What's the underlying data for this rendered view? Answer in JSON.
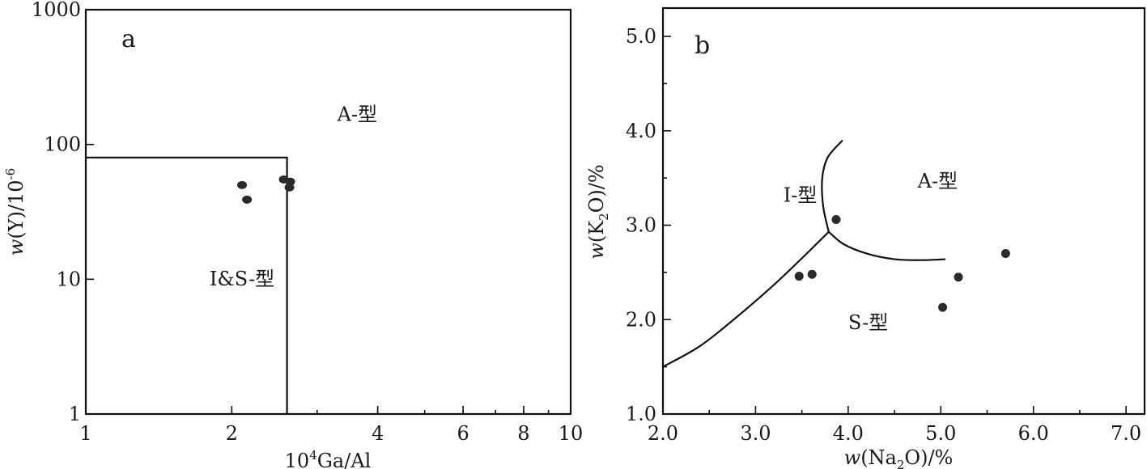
{
  "chart_data": [
    {
      "type": "scatter",
      "panel_label": "a",
      "x_scale": "log",
      "y_scale": "log",
      "xlim": [
        1,
        10
      ],
      "ylim": [
        1,
        1000
      ],
      "xticks": [
        {
          "value": 1,
          "label": "1"
        },
        {
          "value": 2,
          "label": "2"
        },
        {
          "value": 4,
          "label": "4"
        },
        {
          "value": 6,
          "label": "6"
        },
        {
          "value": 8,
          "label": "8"
        },
        {
          "value": 10,
          "label": "10"
        }
      ],
      "yticks": [
        {
          "value": 1,
          "label": "1"
        },
        {
          "value": 10,
          "label": "10"
        },
        {
          "value": 100,
          "label": "100"
        },
        {
          "value": 1000,
          "label": "1000"
        }
      ],
      "xlabel": {
        "pre": "10",
        "sup": "4",
        "post": "Ga/Al"
      },
      "ylabel": {
        "w": "w",
        "pre": "(Y)/10",
        "sup": "-6"
      },
      "boundary": {
        "x": 2.6,
        "y": 80
      },
      "regions": [
        {
          "label": "A-型",
          "x": 3.3,
          "y": 150
        },
        {
          "label": "I&S-型",
          "x": 1.8,
          "y": 9
        }
      ],
      "points": [
        {
          "x": 2.1,
          "y": 50
        },
        {
          "x": 2.15,
          "y": 39
        },
        {
          "x": 2.56,
          "y": 55
        },
        {
          "x": 2.64,
          "y": 53
        },
        {
          "x": 2.63,
          "y": 48
        }
      ],
      "grid": false
    },
    {
      "type": "scatter",
      "panel_label": "b",
      "xlim": [
        2.0,
        7.2
      ],
      "ylim": [
        1.0,
        5.3
      ],
      "xticks": [
        2.0,
        3.0,
        4.0,
        5.0,
        6.0,
        7.0
      ],
      "yticks": [
        1.0,
        2.0,
        3.0,
        4.0,
        5.0
      ],
      "xlabel": {
        "w": "w",
        "pre": "(Na",
        "sub": "2",
        "post": "O)/%"
      },
      "ylabel": {
        "w": "w",
        "pre": "(K",
        "sub": "2",
        "post": "O)/%"
      },
      "boundaries": [
        {
          "name": "I-S",
          "x": [
            2.0,
            2.4,
            2.8,
            3.2,
            3.5,
            3.79
          ],
          "y": [
            1.5,
            1.72,
            2.03,
            2.37,
            2.65,
            2.93
          ]
        },
        {
          "name": "I-A",
          "x": [
            3.79,
            3.73,
            3.72,
            3.78,
            3.94
          ],
          "y": [
            2.93,
            3.2,
            3.5,
            3.72,
            3.9
          ]
        },
        {
          "name": "A-S",
          "x": [
            3.79,
            3.95,
            4.2,
            4.5,
            4.8,
            5.05
          ],
          "y": [
            2.93,
            2.8,
            2.7,
            2.64,
            2.63,
            2.64
          ]
        }
      ],
      "regions": [
        {
          "label": "I-型",
          "x": 3.3,
          "y": 3.25
        },
        {
          "label": "A-型",
          "x": 4.75,
          "y": 3.4
        },
        {
          "label": "S-型",
          "x": 4.0,
          "y": 1.9
        }
      ],
      "points": [
        {
          "x": 3.47,
          "y": 2.46
        },
        {
          "x": 3.61,
          "y": 2.48
        },
        {
          "x": 3.87,
          "y": 3.06
        },
        {
          "x": 5.02,
          "y": 2.13
        },
        {
          "x": 5.19,
          "y": 2.45
        },
        {
          "x": 5.7,
          "y": 2.7
        }
      ],
      "grid": false
    }
  ]
}
